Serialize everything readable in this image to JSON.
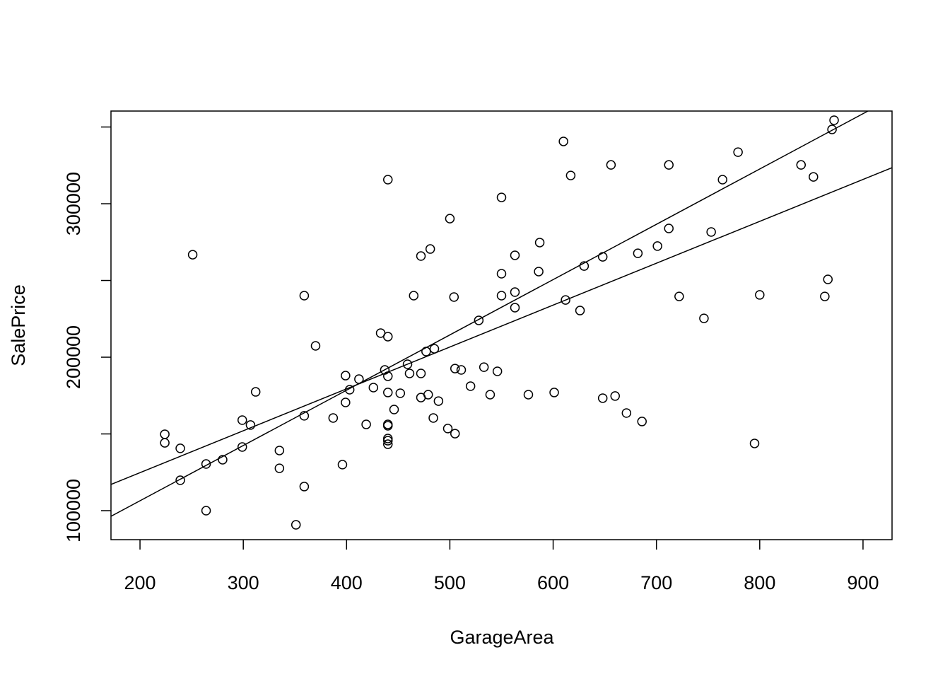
{
  "chart_data": {
    "type": "scatter",
    "x_label": "GarageArea",
    "y_label": "SalePrice",
    "x": [
      224,
      224,
      239,
      239,
      251,
      264,
      264,
      280,
      299,
      299,
      307,
      312,
      335,
      335,
      351,
      359,
      359,
      359,
      370,
      387,
      396,
      399,
      399,
      403,
      412,
      419,
      426,
      433,
      437,
      440,
      440,
      440,
      440,
      440,
      440,
      440,
      440,
      440,
      446,
      452,
      459,
      461,
      465,
      472,
      472,
      472,
      477,
      479,
      481,
      484,
      485,
      489,
      498,
      500,
      504,
      505,
      505,
      511,
      520,
      528,
      533,
      539,
      546,
      550,
      550,
      550,
      563,
      563,
      563,
      576,
      586,
      587,
      601,
      610,
      612,
      617,
      626,
      630,
      648,
      648,
      656,
      660,
      671,
      682,
      686,
      701,
      712,
      712,
      722,
      746,
      753,
      764,
      779,
      795,
      800,
      840,
      852,
      863,
      866,
      870,
      872
    ],
    "y": [
      149800,
      144200,
      140600,
      119800,
      266800,
      130400,
      100000,
      133200,
      159000,
      141500,
      155800,
      177400,
      139200,
      127600,
      90800,
      240100,
      161800,
      115700,
      207400,
      160400,
      130000,
      188000,
      170500,
      178800,
      185700,
      156200,
      180200,
      215700,
      191700,
      213400,
      187600,
      177000,
      315700,
      156200,
      155300,
      147000,
      145600,
      143300,
      165900,
      176500,
      195400,
      189400,
      240100,
      189400,
      173700,
      265900,
      203700,
      175600,
      270500,
      160400,
      205500,
      171400,
      153500,
      290300,
      239200,
      192600,
      150200,
      191700,
      181100,
      224000,
      193500,
      175600,
      190800,
      254400,
      240100,
      304100,
      242400,
      232300,
      266400,
      175600,
      255800,
      274700,
      177000,
      340600,
      237300,
      318400,
      230400,
      259400,
      265400,
      173300,
      325300,
      174700,
      163600,
      267700,
      158100,
      272400,
      325300,
      283900,
      239600,
      225300,
      281600,
      315700,
      333600,
      143800,
      240600,
      325300,
      317500,
      239600,
      250700,
      348400,
      354400
    ],
    "lines": [
      {
        "x": [
          171.9,
          904.8
        ],
        "y": [
          96300,
          360400
        ]
      },
      {
        "x": [
          171.9,
          928.1
        ],
        "y": [
          117100,
          323500
        ]
      }
    ],
    "color": "#000000",
    "xlim": [
      171.9,
      928.1
    ],
    "ylim": [
      81100,
      360400
    ],
    "xticks": [
      200,
      300,
      400,
      500,
      600,
      700,
      800,
      900
    ],
    "yticks": [
      100000,
      200000,
      300000
    ],
    "yminor_ticks": [
      150000,
      250000,
      350000
    ]
  }
}
